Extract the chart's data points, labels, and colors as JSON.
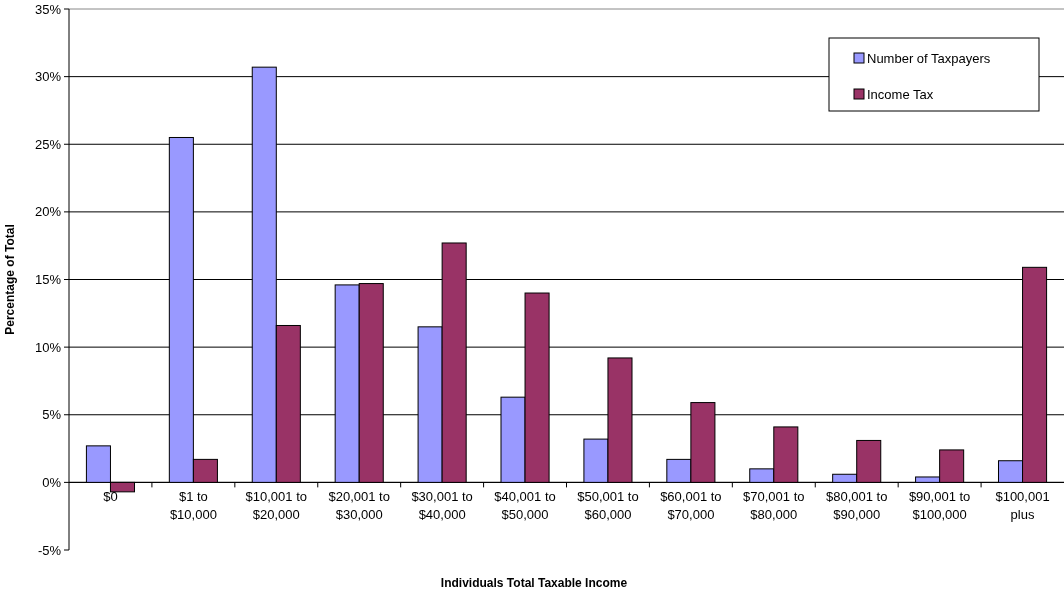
{
  "chart_data": {
    "type": "bar",
    "xlabel": "Individuals Total Taxable Income",
    "ylabel": "Percentage of Total",
    "categories": [
      "$0",
      "$1 to $10,000",
      "$10,001 to $20,000",
      "$20,001 to $30,000",
      "$30,001 to $40,000",
      "$40,001 to $50,000",
      "$50,001 to $60,000",
      "$60,001 to $70,000",
      "$70,001 to $80,000",
      "$80,001 to $90,000",
      "$90,001 to $100,000",
      "$100,001 plus"
    ],
    "series": [
      {
        "name": "Number of Taxpayers",
        "color": "#9999ff",
        "values": [
          2.7,
          25.5,
          30.7,
          14.6,
          11.5,
          6.3,
          3.2,
          1.7,
          1.0,
          0.6,
          0.4,
          1.6
        ]
      },
      {
        "name": "Income Tax",
        "color": "#993366",
        "values": [
          -0.7,
          1.7,
          11.6,
          14.7,
          17.7,
          14.0,
          9.2,
          5.9,
          4.1,
          3.1,
          2.4,
          15.9
        ]
      }
    ],
    "ylim": [
      -5,
      35
    ],
    "yticks": [
      {
        "value": -5,
        "label": "-5%"
      },
      {
        "value": 0,
        "label": "0%"
      },
      {
        "value": 5,
        "label": "5%"
      },
      {
        "value": 10,
        "label": "10%"
      },
      {
        "value": 15,
        "label": "15%"
      },
      {
        "value": 20,
        "label": "20%"
      },
      {
        "value": 25,
        "label": "25%"
      },
      {
        "value": 30,
        "label": "30%"
      },
      {
        "value": 35,
        "label": "35%"
      }
    ],
    "grid": "y",
    "legend": "top right"
  }
}
